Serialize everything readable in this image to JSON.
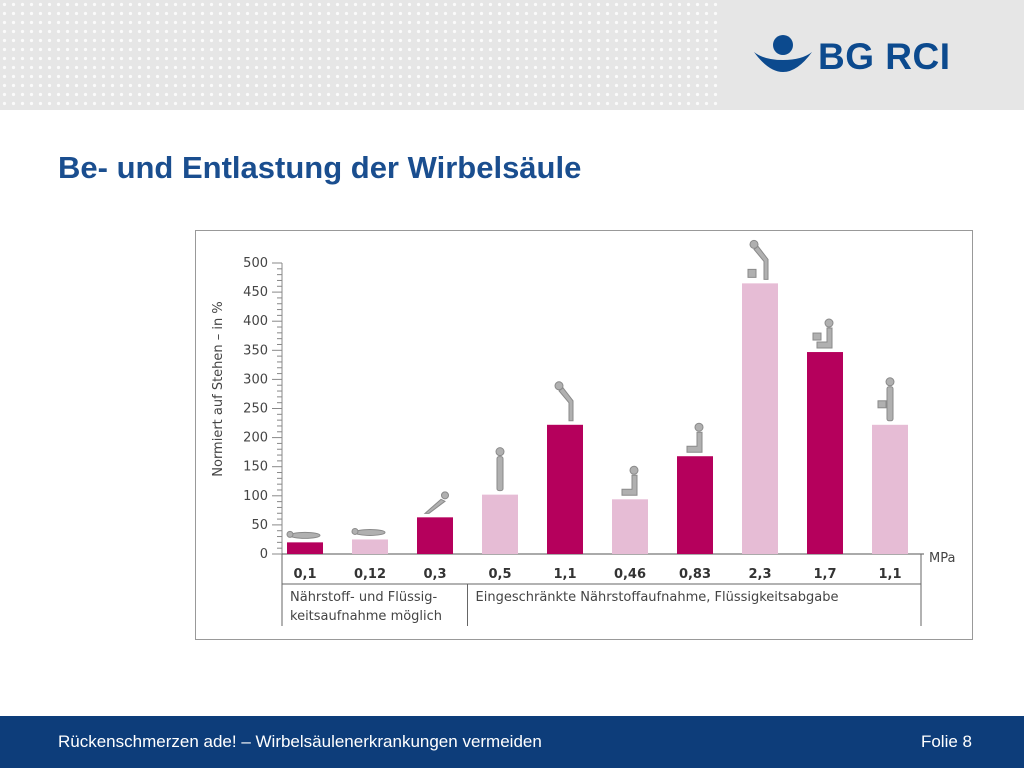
{
  "header": {
    "logo_text": "BG RCI",
    "title": "Be- und Entlastung der Wirbelsäule"
  },
  "footer": {
    "text": "Rückenschmerzen ade! – Wirbelsäulenerkrankungen vermeiden",
    "page": "Folie 8"
  },
  "colors": {
    "brand_blue": "#1a4e8f",
    "footer_blue": "#0d3d7a",
    "bar_dark": "#b5005c",
    "bar_light": "#e6bcd5"
  },
  "chart_data": {
    "type": "bar",
    "ylabel": "Normiert auf Stehen – in %",
    "ylim": [
      0,
      500
    ],
    "yticks": [
      0,
      50,
      100,
      150,
      200,
      250,
      300,
      350,
      400,
      450,
      500
    ],
    "unit_label": "MPa",
    "values": [
      20,
      25,
      63,
      102,
      222,
      94,
      168,
      465,
      347,
      222
    ],
    "mpa": [
      "0,1",
      "0,12",
      "0,3",
      "0,5",
      "1,1",
      "0,46",
      "0,83",
      "2,3",
      "1,7",
      "1,1"
    ],
    "shade": [
      "dark",
      "light",
      "dark",
      "light",
      "dark",
      "light",
      "dark",
      "light",
      "dark",
      "light"
    ],
    "postures": [
      "lying",
      "lying",
      "reclining",
      "standing",
      "bending",
      "sitting",
      "sitting-bent",
      "bending-lifting",
      "sitting-lifting",
      "standing-lifting"
    ],
    "groups": [
      {
        "label_lines": [
          "Nährstoff- und Flüssig-",
          "keitsaufnahme möglich"
        ],
        "count": 3
      },
      {
        "label_lines": [
          "Eingeschränkte Nährstoffaufnahme, Flüssigkeitsabgabe"
        ],
        "count": 7
      }
    ]
  }
}
